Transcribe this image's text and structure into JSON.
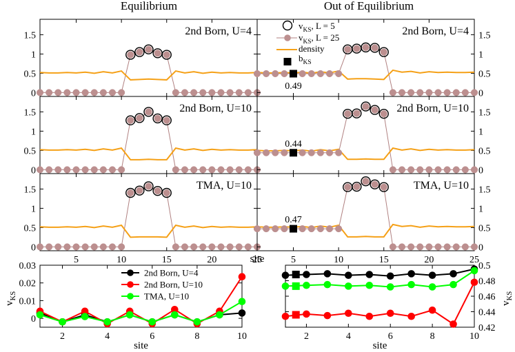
{
  "figure": {
    "column_titles": [
      "Equilibrium",
      "Out of Equilibrium"
    ],
    "legend": {
      "items": [
        "v_KS, L = 5",
        "v_KS, L = 25",
        "density",
        "b_KS"
      ]
    },
    "colors": {
      "density": "#f5a016",
      "vks25_fill": "#bc8f8f",
      "vks25_line": "#b08080",
      "black": "#000000",
      "red": "#ff0000",
      "green": "#00ff00"
    }
  },
  "chart_data": [
    {
      "id": "eq-2b-u4",
      "type": "line",
      "panel_label": "2nd Born, U=4",
      "xlim": [
        1,
        25
      ],
      "ylim": [
        -0.1,
        1.9
      ],
      "yticks": [
        0,
        0.5,
        1,
        1.5
      ],
      "ytick_labels": [
        "0",
        "0.5",
        "1",
        "1.5"
      ],
      "xticks": [
        5,
        10,
        15,
        20,
        25
      ],
      "xtick_labels": [],
      "vks_L25": [
        0,
        0,
        0,
        0,
        0,
        0,
        0,
        0,
        0,
        0,
        0.98,
        1.05,
        1.12,
        1.02,
        0.98,
        0,
        0,
        0,
        0,
        0,
        0,
        0,
        0,
        0,
        0
      ],
      "vks_L5": [
        0.98,
        1.05,
        1.12,
        1.02,
        0.98
      ],
      "density": [
        0.52,
        0.51,
        0.51,
        0.52,
        0.51,
        0.53,
        0.5,
        0.54,
        0.51,
        0.56,
        0.33,
        0.34,
        0.35,
        0.34,
        0.33,
        0.56,
        0.51,
        0.54,
        0.5,
        0.53,
        0.51,
        0.52,
        0.51,
        0.51,
        0.52
      ],
      "b_ks": null
    },
    {
      "id": "oe-2b-u4",
      "type": "line",
      "panel_label": "2nd Born, U=4",
      "xlim": [
        1,
        25
      ],
      "ylim": [
        -0.1,
        1.9
      ],
      "yticks": [
        0,
        0.5,
        1,
        1.5
      ],
      "ytick_labels": [
        "0",
        "0.5",
        "1",
        "1.5"
      ],
      "xticks": [
        5,
        10,
        15,
        20,
        25
      ],
      "xtick_labels": [],
      "vks_L25": [
        0.49,
        0.49,
        0.49,
        0.49,
        0.49,
        0.49,
        0.49,
        0.49,
        0.49,
        0.49,
        1.12,
        1.14,
        1.17,
        1.16,
        1.05,
        0,
        0,
        0,
        0,
        0,
        0,
        0,
        0,
        0,
        0
      ],
      "vks_L5": [
        1.12,
        1.14,
        1.17,
        1.16,
        1.05
      ],
      "density": [
        0.52,
        0.51,
        0.51,
        0.52,
        0.51,
        0.53,
        0.5,
        0.54,
        0.51,
        0.56,
        0.35,
        0.36,
        0.36,
        0.35,
        0.34,
        0.58,
        0.53,
        0.55,
        0.51,
        0.54,
        0.52,
        0.53,
        0.52,
        0.52,
        0.53
      ],
      "b_ks": {
        "x": 5,
        "y": 0.49,
        "label": "0.49"
      }
    },
    {
      "id": "eq-2b-u10",
      "type": "line",
      "panel_label": "2nd Born, U=10",
      "xlim": [
        1,
        25
      ],
      "ylim": [
        -0.1,
        1.9
      ],
      "yticks": [
        0,
        0.5,
        1,
        1.5
      ],
      "ytick_labels": [
        "0",
        "0.5",
        "1",
        "1.5"
      ],
      "xticks": [
        5,
        10,
        15,
        20,
        25
      ],
      "xtick_labels": [],
      "vks_L25": [
        0,
        0,
        0,
        0,
        0,
        0,
        0,
        0,
        0,
        0,
        1.28,
        1.34,
        1.5,
        1.33,
        1.28,
        0,
        0,
        0,
        0,
        0,
        0,
        0,
        0,
        0,
        0
      ],
      "vks_L5": [
        1.28,
        1.34,
        1.5,
        1.33,
        1.28
      ],
      "density": [
        0.52,
        0.51,
        0.51,
        0.52,
        0.51,
        0.53,
        0.5,
        0.54,
        0.51,
        0.56,
        0.26,
        0.26,
        0.27,
        0.26,
        0.26,
        0.56,
        0.51,
        0.54,
        0.5,
        0.53,
        0.51,
        0.52,
        0.51,
        0.51,
        0.52
      ],
      "b_ks": null
    },
    {
      "id": "oe-2b-u10",
      "type": "line",
      "panel_label": "2nd Born, U=10",
      "xlim": [
        1,
        25
      ],
      "ylim": [
        -0.1,
        1.9
      ],
      "yticks": [
        0,
        0.5,
        1,
        1.5
      ],
      "ytick_labels": [
        "0",
        "0.5",
        "1",
        "1.5"
      ],
      "xticks": [
        5,
        10,
        15,
        20,
        25
      ],
      "xtick_labels": [],
      "vks_L25": [
        0.44,
        0.44,
        0.44,
        0.44,
        0.44,
        0.44,
        0.44,
        0.44,
        0.44,
        0.44,
        1.45,
        1.46,
        1.64,
        1.55,
        1.45,
        0,
        0,
        0,
        0,
        0,
        0,
        0,
        0,
        0,
        0
      ],
      "vks_L5": [
        1.45,
        1.46,
        1.64,
        1.55,
        1.45
      ],
      "density": [
        0.5,
        0.49,
        0.49,
        0.5,
        0.49,
        0.51,
        0.48,
        0.52,
        0.49,
        0.53,
        0.27,
        0.27,
        0.28,
        0.27,
        0.27,
        0.56,
        0.51,
        0.54,
        0.5,
        0.53,
        0.51,
        0.52,
        0.51,
        0.51,
        0.52
      ],
      "b_ks": {
        "x": 5,
        "y": 0.44,
        "label": "0.44"
      }
    },
    {
      "id": "eq-tma-u10",
      "type": "line",
      "panel_label": "TMA, U=10",
      "xlim": [
        1,
        25
      ],
      "ylim": [
        -0.1,
        1.9
      ],
      "yticks": [
        0,
        0.5,
        1,
        1.5
      ],
      "ytick_labels": [
        "0",
        "0.5",
        "1",
        "1.5"
      ],
      "xticks": [
        5,
        10,
        15,
        20,
        25
      ],
      "xtick_labels": [
        "5",
        "10",
        "15",
        "20",
        "25"
      ],
      "xlabel": "site",
      "vks_L25": [
        0,
        0,
        0,
        0,
        0,
        0,
        0,
        0,
        0,
        0,
        1.4,
        1.46,
        1.57,
        1.45,
        1.4,
        0,
        0,
        0,
        0,
        0,
        0,
        0,
        0,
        0,
        0
      ],
      "vks_L5": [
        1.4,
        1.46,
        1.57,
        1.45,
        1.4
      ],
      "density": [
        0.52,
        0.51,
        0.51,
        0.52,
        0.51,
        0.53,
        0.5,
        0.54,
        0.51,
        0.56,
        0.25,
        0.26,
        0.26,
        0.26,
        0.25,
        0.56,
        0.51,
        0.54,
        0.5,
        0.53,
        0.51,
        0.52,
        0.51,
        0.51,
        0.52
      ],
      "b_ks": null
    },
    {
      "id": "oe-tma-u10",
      "type": "line",
      "panel_label": "TMA, U=10",
      "xlim": [
        1,
        25
      ],
      "ylim": [
        -0.1,
        1.9
      ],
      "yticks": [
        0,
        0.5,
        1,
        1.5
      ],
      "ytick_labels": [
        "0",
        "0.5",
        "1",
        "1.5"
      ],
      "xticks": [
        5,
        10,
        15,
        20,
        25
      ],
      "xtick_labels": [
        "5",
        "10",
        "15",
        "20",
        "25"
      ],
      "xlabel": "site",
      "vks_L25": [
        0.47,
        0.47,
        0.47,
        0.47,
        0.47,
        0.47,
        0.47,
        0.47,
        0.47,
        0.47,
        1.55,
        1.56,
        1.7,
        1.62,
        1.55,
        0,
        0,
        0,
        0,
        0,
        0,
        0,
        0,
        0,
        0
      ],
      "vks_L5": [
        1.55,
        1.56,
        1.7,
        1.62,
        1.55
      ],
      "density": [
        0.52,
        0.51,
        0.51,
        0.52,
        0.51,
        0.53,
        0.5,
        0.54,
        0.51,
        0.56,
        0.26,
        0.26,
        0.27,
        0.26,
        0.26,
        0.58,
        0.53,
        0.55,
        0.51,
        0.54,
        0.52,
        0.53,
        0.52,
        0.52,
        0.53
      ],
      "b_ks": {
        "x": 5,
        "y": 0.47,
        "label": "0.47"
      }
    },
    {
      "id": "eq-bottom",
      "type": "line",
      "xlim": [
        1,
        10
      ],
      "ylim": [
        -0.005,
        0.03
      ],
      "yticks": [
        0,
        0.01,
        0.02,
        0.03
      ],
      "ytick_labels": [
        "0",
        "0.01",
        "0.02",
        "0.03"
      ],
      "xticks": [
        2,
        4,
        6,
        8,
        10
      ],
      "xtick_labels": [
        "2",
        "4",
        "6",
        "8",
        "10"
      ],
      "xlabel": "site",
      "ylabel": "v_KS",
      "series": [
        {
          "name": "2nd Born, U=4",
          "color": "black",
          "x": [
            1,
            2,
            3,
            4,
            5,
            6,
            7,
            8,
            9,
            10
          ],
          "values": [
            0.003,
            -0.002,
            0.002,
            -0.002,
            0.002,
            -0.002,
            0.002,
            -0.002,
            0.002,
            0.003
          ]
        },
        {
          "name": "2nd Born, U=10",
          "color": "red",
          "x": [
            1,
            2,
            3,
            4,
            5,
            6,
            7,
            8,
            9,
            10
          ],
          "values": [
            0.004,
            -0.002,
            0.004,
            -0.003,
            0.004,
            -0.003,
            0.005,
            -0.003,
            0.004,
            0.0235
          ]
        },
        {
          "name": "TMA, U=10",
          "color": "green",
          "x": [
            1,
            2,
            3,
            4,
            5,
            6,
            7,
            8,
            9,
            10
          ],
          "values": [
            0.002,
            -0.002,
            0.001,
            -0.002,
            0.002,
            -0.002,
            0.002,
            -0.002,
            0.002,
            0.0095
          ]
        }
      ]
    },
    {
      "id": "oe-bottom",
      "type": "line",
      "xlim": [
        1,
        10
      ],
      "ylim": [
        0.42,
        0.5
      ],
      "yticks": [
        0.42,
        0.44,
        0.46,
        0.48,
        0.5
      ],
      "ytick_labels": [
        "0.42",
        "0.44",
        "0.46",
        "0.48",
        "0.5"
      ],
      "xticks": [
        2,
        4,
        6,
        8,
        10
      ],
      "xtick_labels": [
        "2",
        "4",
        "6",
        "8",
        "10"
      ],
      "xlabel": "site",
      "ylabel": "v_KS",
      "series": [
        {
          "name": "2nd Born, U=4",
          "color": "black",
          "x": [
            1,
            2,
            3,
            4,
            5,
            6,
            7,
            8,
            9,
            10
          ],
          "values": [
            0.487,
            0.488,
            0.489,
            0.487,
            0.488,
            0.486,
            0.489,
            0.487,
            0.489,
            0.495
          ],
          "b_ks": {
            "x": 1.5,
            "y": 0.488
          }
        },
        {
          "name": "2nd Born, U=10",
          "color": "red",
          "x": [
            1,
            2,
            3,
            4,
            5,
            6,
            7,
            8,
            9,
            10
          ],
          "values": [
            0.434,
            0.437,
            0.435,
            0.438,
            0.434,
            0.438,
            0.434,
            0.442,
            0.424,
            0.478
          ],
          "b_ks": {
            "x": 1.5,
            "y": 0.436
          }
        },
        {
          "name": "TMA, U=10",
          "color": "green",
          "x": [
            1,
            2,
            3,
            4,
            5,
            6,
            7,
            8,
            9,
            10
          ],
          "values": [
            0.473,
            0.474,
            0.475,
            0.473,
            0.474,
            0.472,
            0.475,
            0.472,
            0.475,
            0.493
          ],
          "b_ks": {
            "x": 1.5,
            "y": 0.473
          }
        }
      ]
    }
  ]
}
